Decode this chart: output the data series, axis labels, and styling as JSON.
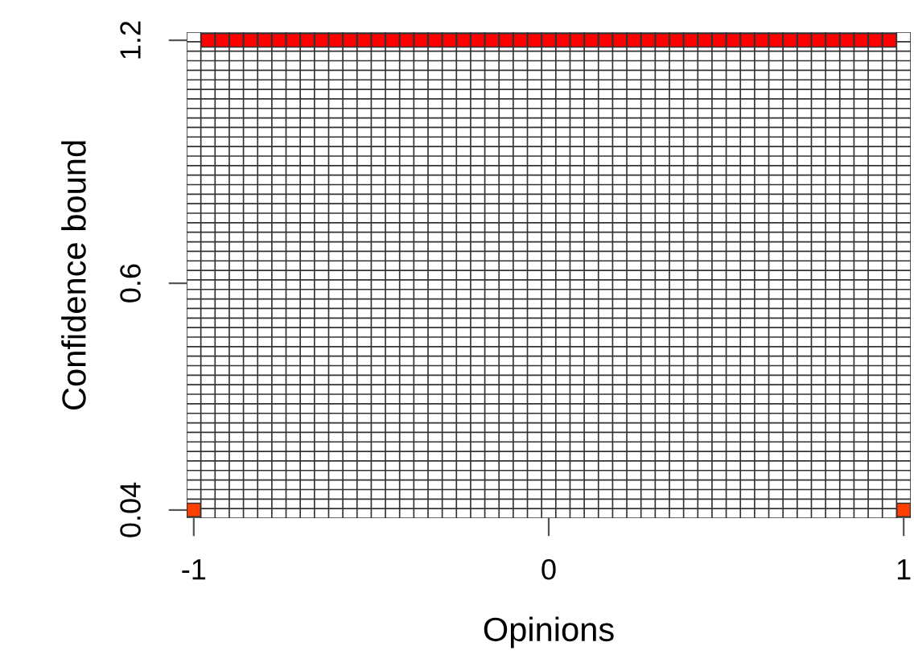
{
  "chart_data": {
    "type": "scatter",
    "xlabel": "Opinions",
    "ylabel": "Confidence bound",
    "xlim": [
      -1.02,
      1.02
    ],
    "ylim": [
      0.02,
      1.22
    ],
    "xticks": [
      -1,
      0,
      1
    ],
    "yticks": [
      0.04,
      0.6,
      1.2
    ],
    "grid": true,
    "marker": "square",
    "series": [
      {
        "color": "#ff0000",
        "x": [
          -0.96,
          -0.92,
          -0.88,
          -0.84,
          -0.8,
          -0.76,
          -0.72,
          -0.68,
          -0.64,
          -0.6,
          -0.56,
          -0.52,
          -0.48,
          -0.44,
          -0.4,
          -0.36,
          -0.32,
          -0.28,
          -0.24,
          -0.2,
          -0.16,
          -0.12,
          -0.08,
          -0.04,
          0,
          0.04,
          0.08,
          0.12,
          0.16,
          0.2,
          0.24,
          0.28,
          0.32,
          0.36,
          0.4,
          0.44,
          0.48,
          0.52,
          0.56,
          0.6,
          0.64,
          0.68,
          0.72,
          0.76,
          0.8,
          0.84,
          0.88,
          0.92,
          0.96
        ],
        "values": [
          1.2,
          1.2,
          1.2,
          1.2,
          1.2,
          1.2,
          1.2,
          1.2,
          1.2,
          1.2,
          1.2,
          1.2,
          1.2,
          1.2,
          1.2,
          1.2,
          1.2,
          1.2,
          1.2,
          1.2,
          1.2,
          1.2,
          1.2,
          1.2,
          1.2,
          1.2,
          1.2,
          1.2,
          1.2,
          1.2,
          1.2,
          1.2,
          1.2,
          1.2,
          1.2,
          1.2,
          1.2,
          1.2,
          1.2,
          1.2,
          1.2,
          1.2,
          1.2,
          1.2,
          1.2,
          1.2,
          1.2,
          1.2,
          1.2
        ]
      },
      {
        "color": "#ff4000",
        "x": [
          -1,
          1
        ],
        "values": [
          0.04,
          0.04
        ]
      }
    ]
  }
}
